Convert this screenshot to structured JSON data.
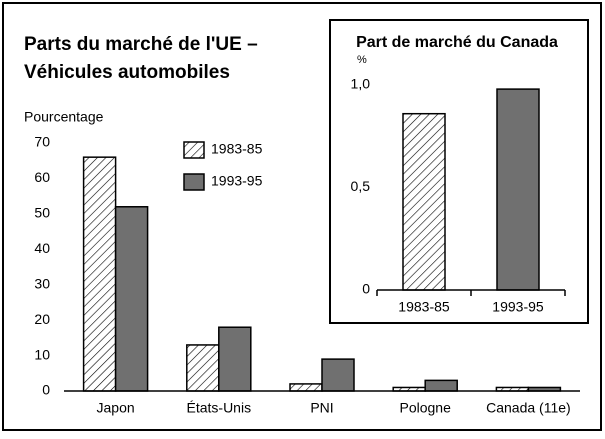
{
  "chart_data": [
    {
      "type": "bar",
      "title": [
        "Parts du marché de l'UE –",
        "Véhicules automobiles"
      ],
      "y_label": "Pourcentage",
      "categories": [
        "Japon",
        "États-Unis",
        "PNI",
        "Pologne",
        "Canada (11e)"
      ],
      "series": [
        {
          "name": "1983-85",
          "color": "hatch",
          "values": [
            66,
            13,
            2,
            1,
            1
          ]
        },
        {
          "name": "1993-95",
          "color": "#707070",
          "values": [
            52,
            18,
            9,
            3,
            1
          ]
        }
      ],
      "ylim": [
        0,
        70
      ],
      "yticks": [
        0,
        10,
        20,
        30,
        40,
        50,
        60,
        70
      ],
      "grid": false,
      "legend": "top-center"
    },
    {
      "type": "bar",
      "title": "Part de marché du Canada",
      "y_label": "%",
      "categories": [
        "1983-85",
        "1993-95"
      ],
      "values": [
        0.86,
        0.98
      ],
      "colors": [
        "hatch",
        "#707070"
      ],
      "ylim": [
        0,
        1.0
      ],
      "yticks": [
        {
          "value": 0,
          "label": "0"
        },
        {
          "value": 0.5,
          "label": "0,5"
        },
        {
          "value": 1.0,
          "label": "1,0"
        }
      ],
      "grid": false
    }
  ]
}
